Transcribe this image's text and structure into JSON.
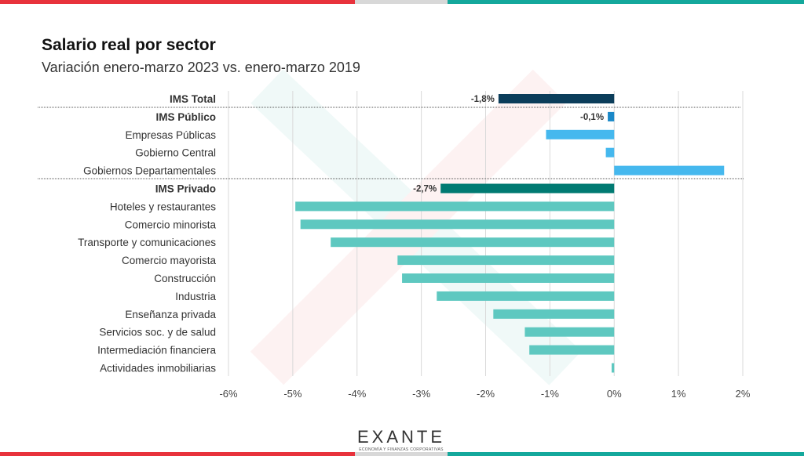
{
  "title": "Salario real por sector",
  "subtitle": "Variación enero-marzo 2023 vs. enero-marzo 2019",
  "logo": {
    "word": "EXANTE",
    "tagline": "ECONOMÍA Y FINANZAS CORPORATIVAS"
  },
  "colors": {
    "total": "#0b3d5a",
    "publico": "#1a88c8",
    "publico_sub": "#45b8ee",
    "privado": "#007a72",
    "privado_sub": "#5ec8c0",
    "red": "#e8323c",
    "teal": "#14a89c"
  },
  "chart_data": {
    "type": "bar",
    "orientation": "horizontal",
    "xlim": [
      -6,
      2
    ],
    "x_ticks": [
      "-6%",
      "-5%",
      "-4%",
      "-3%",
      "-2%",
      "-1%",
      "0%",
      "1%",
      "2%"
    ],
    "grid": true,
    "categories": [
      "IMS Total",
      "IMS Público",
      "Empresas Públicas",
      "Gobierno Central",
      "Gobiernos Departamentales",
      "IMS Privado",
      "Hoteles y restaurantes",
      "Comercio minorista",
      "Transporte y comunicaciones",
      "Comercio mayorista",
      "Construcción",
      "Industria",
      "Enseñanza privada",
      "Servicios soc. y de salud",
      "Intermediación financiera",
      "Actividades inmobiliarias"
    ],
    "values": [
      -1.8,
      -0.1,
      -1.06,
      -0.13,
      1.71,
      -2.7,
      -4.96,
      -4.88,
      -4.41,
      -3.37,
      -3.3,
      -2.76,
      -1.88,
      -1.39,
      -1.32,
      -0.04
    ],
    "bold": [
      true,
      true,
      false,
      false,
      false,
      true,
      false,
      false,
      false,
      false,
      false,
      false,
      false,
      false,
      false,
      false
    ],
    "color_keys": [
      "total",
      "publico",
      "publico_sub",
      "publico_sub",
      "publico_sub",
      "privado",
      "privado_sub",
      "privado_sub",
      "privado_sub",
      "privado_sub",
      "privado_sub",
      "privado_sub",
      "privado_sub",
      "privado_sub",
      "privado_sub",
      "privado_sub"
    ],
    "data_labels": [
      "-1,8%",
      "-0,1%",
      "",
      "",
      "",
      "-2,7%",
      "",
      "",
      "",
      "",
      "",
      "",
      "",
      "",
      "",
      ""
    ]
  }
}
